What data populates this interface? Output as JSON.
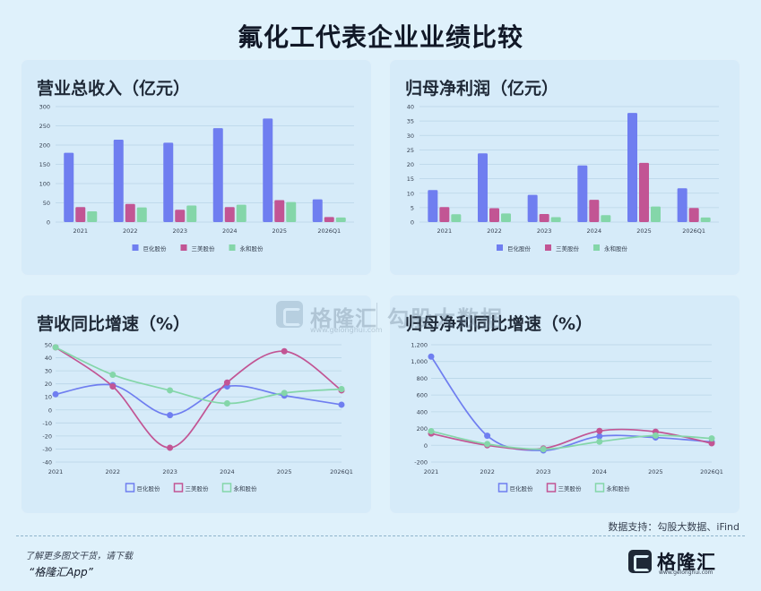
{
  "title": "氟化工代表企业业绩比较",
  "source": "数据支持：勾股大数据、iFind",
  "footer": {
    "line1": "了解更多图文干货，请下载",
    "line2": "“格隆汇App”",
    "logo_text": "格隆汇",
    "logo_sub": "www.gelonghui.com"
  },
  "watermark": {
    "left": "格隆汇",
    "left_sub": "www.gelonghui.com",
    "right": "勾股大数据"
  },
  "colors": {
    "series_1": "#6f7ef0",
    "series_2": "#c25594",
    "series_3": "#84d6a9",
    "grid": "#b9d5e7",
    "axis_text": "#374151"
  },
  "chart_data": [
    {
      "type": "bar",
      "title": "营业总收入（亿元）",
      "categories": [
        "2021",
        "2022",
        "2023",
        "2024",
        "2025",
        "2026Q1"
      ],
      "ylim": [
        0,
        300
      ],
      "yticks": [
        0,
        50,
        100,
        150,
        200,
        250,
        300
      ],
      "series": [
        {
          "name": "巨化股份",
          "values": [
            180,
            214,
            206,
            244,
            269,
            59
          ]
        },
        {
          "name": "三美股份",
          "values": [
            39,
            47,
            32,
            39,
            57,
            13
          ]
        },
        {
          "name": "永和股份",
          "values": [
            28,
            38,
            43,
            45,
            52,
            12
          ]
        }
      ],
      "legend": "bottom",
      "grid": true
    },
    {
      "type": "bar",
      "title": "归母净利润（亿元）",
      "categories": [
        "2021",
        "2022",
        "2023",
        "2024",
        "2025",
        "2026Q1"
      ],
      "ylim": [
        0,
        40
      ],
      "yticks": [
        0,
        5,
        10,
        15,
        20,
        25,
        30,
        35,
        40
      ],
      "series": [
        {
          "name": "巨化股份",
          "values": [
            11.1,
            23.8,
            9.4,
            19.6,
            37.8,
            11.7
          ]
        },
        {
          "name": "三美股份",
          "values": [
            5.2,
            4.8,
            2.8,
            7.7,
            20.5,
            4.9
          ]
        },
        {
          "name": "永和股份",
          "values": [
            2.7,
            3.0,
            1.7,
            2.4,
            5.4,
            1.6
          ]
        }
      ],
      "legend": "bottom",
      "grid": true
    },
    {
      "type": "line",
      "title": "营收同比增速（%）",
      "categories": [
        "2021",
        "2022",
        "2023",
        "2024",
        "2025",
        "2026Q1"
      ],
      "ylim": [
        -40,
        50
      ],
      "yticks": [
        -40,
        -30,
        -20,
        -10,
        0,
        10,
        20,
        30,
        40,
        50
      ],
      "series": [
        {
          "name": "巨化股份",
          "values": [
            12,
            19,
            -4,
            18,
            11,
            4
          ]
        },
        {
          "name": "三美股份",
          "values": [
            48,
            18,
            -29,
            21,
            45,
            15
          ]
        },
        {
          "name": "永和股份",
          "values": [
            48,
            27,
            15,
            5,
            13,
            16
          ]
        }
      ],
      "legend": "bottom",
      "grid": true
    },
    {
      "type": "line",
      "title": "归母净利同比增速（%）",
      "categories": [
        "2021",
        "2022",
        "2023",
        "2024",
        "2025",
        "2026Q1"
      ],
      "ylim": [
        -200,
        1200
      ],
      "yticks": [
        -200,
        0,
        200,
        400,
        600,
        800,
        1000,
        1200
      ],
      "series": [
        {
          "name": "巨化股份",
          "values": [
            1058,
            114,
            -61,
            108,
            93,
            40
          ]
        },
        {
          "name": "三美股份",
          "values": [
            140,
            0,
            -38,
            171,
            162,
            24
          ]
        },
        {
          "name": "永和股份",
          "values": [
            169,
            15,
            -47,
            43,
            117,
            82
          ]
        }
      ],
      "legend": "bottom",
      "grid": true
    }
  ]
}
